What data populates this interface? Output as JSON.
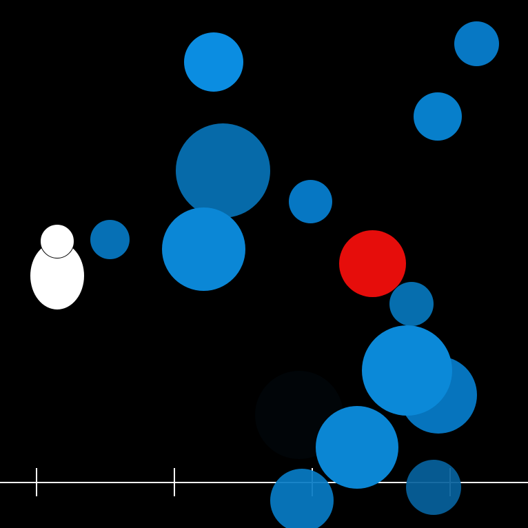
{
  "scene": {
    "background": "#000000",
    "line_color": "#ffffff",
    "player": {
      "color": "#ffffff"
    },
    "target": {
      "color": "#e60d0b"
    },
    "bubbles": [
      {
        "color": "#0b8de1"
      },
      {
        "color": "#0778c4"
      },
      {
        "color": "#077fcb"
      },
      {
        "color": "#066aa9"
      },
      {
        "color": "#0677c3"
      },
      {
        "color": "#0670b5"
      },
      {
        "color": "#0b87d6"
      },
      {
        "color": "#066eae"
      },
      {
        "color": "#0b89d8"
      },
      {
        "color": "#0674bd"
      },
      {
        "color": "#010508"
      },
      {
        "color": "#0b86d3"
      },
      {
        "color": "#06619c"
      },
      {
        "color": "#077bc4"
      }
    ]
  }
}
